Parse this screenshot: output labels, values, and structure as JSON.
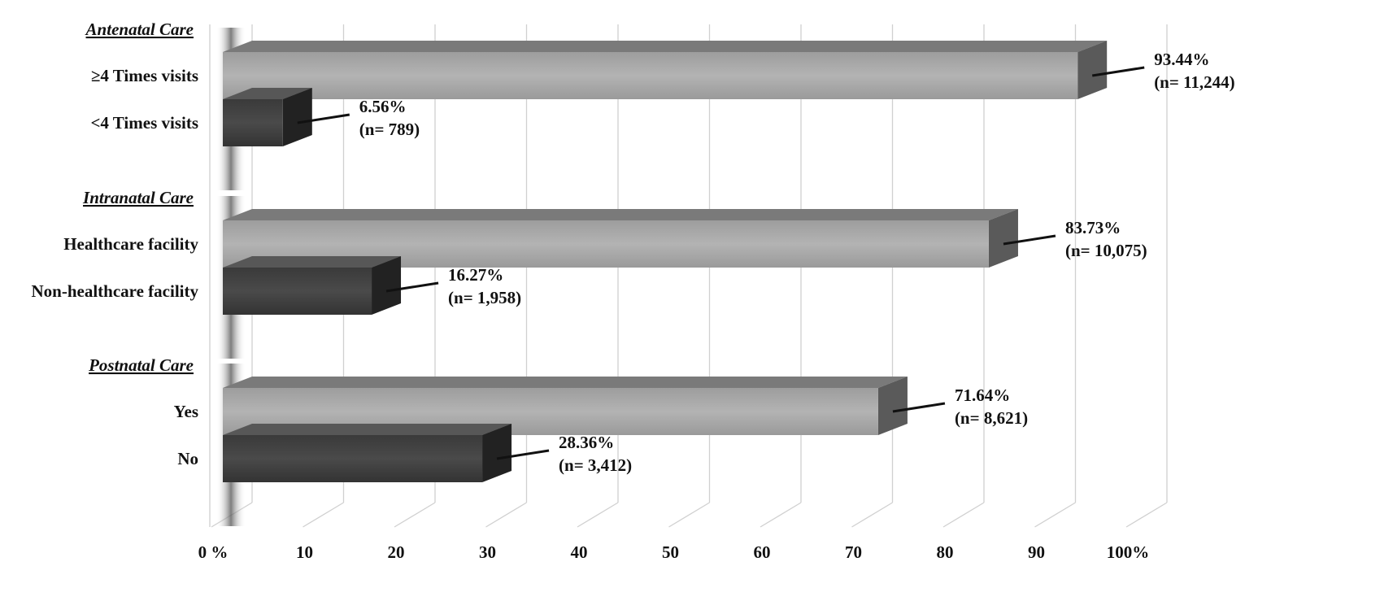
{
  "chart_data": {
    "type": "bar",
    "orientation": "horizontal",
    "style": "3d",
    "xlim": [
      0,
      100
    ],
    "ticks": [
      "0 %",
      "10",
      "20",
      "30",
      "40",
      "50",
      "60",
      "70",
      "80",
      "90",
      "100%"
    ],
    "grid": true,
    "groups": [
      {
        "name": "Antenatal Care",
        "bars": [
          {
            "label": "≥4 Times visits",
            "value": 93.44,
            "pct_text": "93.44%",
            "n_text": "(n= 11,244)",
            "color": "#a6a6a6"
          },
          {
            "label": "<4 Times visits",
            "value": 6.56,
            "pct_text": "6.56%",
            "n_text": "(n= 789)",
            "color": "#404040"
          }
        ]
      },
      {
        "name": "Intranatal Care",
        "bars": [
          {
            "label": "Healthcare facility",
            "value": 83.73,
            "pct_text": "83.73%",
            "n_text": "(n= 10,075)",
            "color": "#a6a6a6"
          },
          {
            "label": "Non-healthcare facility",
            "value": 16.27,
            "pct_text": "16.27%",
            "n_text": "(n= 1,958)",
            "color": "#404040"
          }
        ]
      },
      {
        "name": "Postnatal Care",
        "bars": [
          {
            "label": "Yes",
            "value": 71.64,
            "pct_text": "71.64%",
            "n_text": "(n= 8,621)",
            "color": "#a6a6a6"
          },
          {
            "label": "No",
            "value": 28.36,
            "pct_text": "28.36%",
            "n_text": "(n= 3,412)",
            "color": "#404040"
          }
        ]
      }
    ]
  }
}
